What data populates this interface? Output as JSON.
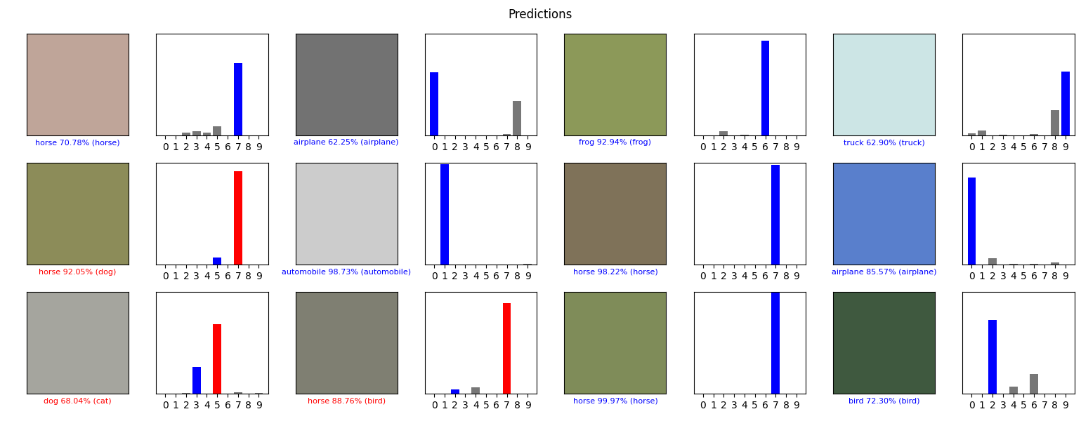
{
  "title": "Predictions",
  "chart_data": [
    {
      "type": "bar",
      "annotation": "horse 70.78% (horse)",
      "categories": [
        "0",
        "1",
        "2",
        "3",
        "4",
        "5",
        "6",
        "7",
        "8",
        "9"
      ],
      "values": [
        0,
        0,
        0.03,
        0.04,
        0.03,
        0.09,
        0,
        0.7078,
        0,
        0
      ],
      "colors": [
        "#777777",
        "#777777",
        "#777777",
        "#777777",
        "#777777",
        "#777777",
        "#777777",
        "blue",
        "#777777",
        "#777777"
      ],
      "ylim": [
        0,
        1
      ],
      "tick_labels": "x"
    },
    {
      "type": "bar",
      "annotation": "airplane 62.25% (airplane)",
      "categories": [
        "0",
        "1",
        "2",
        "3",
        "4",
        "5",
        "6",
        "7",
        "8",
        "9"
      ],
      "values": [
        0.6225,
        0,
        0,
        0,
        0,
        0,
        0,
        0.01,
        0.34,
        0
      ],
      "colors": [
        "blue",
        "#777777",
        "#777777",
        "#777777",
        "#777777",
        "#777777",
        "#777777",
        "#777777",
        "#777777",
        "#777777"
      ],
      "ylim": [
        0,
        1
      ],
      "tick_labels": "x"
    },
    {
      "type": "bar",
      "annotation": "frog 92.94% (frog)",
      "categories": [
        "0",
        "1",
        "2",
        "3",
        "4",
        "5",
        "6",
        "7",
        "8",
        "9"
      ],
      "values": [
        0,
        0,
        0.04,
        0,
        0.005,
        0,
        0.9294,
        0,
        0,
        0
      ],
      "colors": [
        "#777777",
        "#777777",
        "#777777",
        "#777777",
        "#777777",
        "#777777",
        "blue",
        "#777777",
        "#777777",
        "#777777"
      ],
      "ylim": [
        0,
        1
      ],
      "tick_labels": "x"
    },
    {
      "type": "bar",
      "annotation": "truck 62.90% (truck)",
      "categories": [
        "0",
        "1",
        "2",
        "3",
        "4",
        "5",
        "6",
        "7",
        "8",
        "9"
      ],
      "values": [
        0.02,
        0.05,
        0,
        0.005,
        0,
        0,
        0.01,
        0,
        0.25,
        0.629
      ],
      "colors": [
        "#777777",
        "#777777",
        "#777777",
        "#777777",
        "#777777",
        "#777777",
        "#777777",
        "#777777",
        "#777777",
        "blue"
      ],
      "ylim": [
        0,
        1
      ],
      "tick_labels": "x"
    },
    {
      "type": "bar",
      "annotation": "horse 92.05% (dog)",
      "categories": [
        "0",
        "1",
        "2",
        "3",
        "4",
        "5",
        "6",
        "7",
        "8",
        "9"
      ],
      "values": [
        0,
        0,
        0,
        0,
        0,
        0.07,
        0,
        0.9205,
        0,
        0
      ],
      "colors": [
        "#777777",
        "#777777",
        "#777777",
        "#777777",
        "#777777",
        "blue",
        "#777777",
        "red",
        "#777777",
        "#777777"
      ],
      "ylim": [
        0,
        1
      ],
      "tick_labels": "x"
    },
    {
      "type": "bar",
      "annotation": "automobile 98.73% (automobile)",
      "categories": [
        "0",
        "1",
        "2",
        "3",
        "4",
        "5",
        "6",
        "7",
        "8",
        "9"
      ],
      "values": [
        0,
        0.9873,
        0,
        0,
        0,
        0,
        0,
        0,
        0,
        0.01
      ],
      "colors": [
        "#777777",
        "blue",
        "#777777",
        "#777777",
        "#777777",
        "#777777",
        "#777777",
        "#777777",
        "#777777",
        "#777777"
      ],
      "ylim": [
        0,
        1
      ],
      "tick_labels": "x"
    },
    {
      "type": "bar",
      "annotation": "horse 98.22% (horse)",
      "categories": [
        "0",
        "1",
        "2",
        "3",
        "4",
        "5",
        "6",
        "7",
        "8",
        "9"
      ],
      "values": [
        0,
        0,
        0.003,
        0,
        0.003,
        0,
        0,
        0.9822,
        0,
        0
      ],
      "colors": [
        "#777777",
        "#777777",
        "#777777",
        "#777777",
        "#777777",
        "#777777",
        "#777777",
        "blue",
        "#777777",
        "#777777"
      ],
      "ylim": [
        0,
        1
      ],
      "tick_labels": "x"
    },
    {
      "type": "bar",
      "annotation": "airplane 85.57% (airplane)",
      "categories": [
        "0",
        "1",
        "2",
        "3",
        "4",
        "5",
        "6",
        "7",
        "8",
        "9"
      ],
      "values": [
        0.8557,
        0,
        0.06,
        0,
        0.005,
        0,
        0.01,
        0,
        0.02,
        0
      ],
      "colors": [
        "blue",
        "#777777",
        "#777777",
        "#777777",
        "#777777",
        "#777777",
        "#777777",
        "#777777",
        "#777777",
        "#777777"
      ],
      "ylim": [
        0,
        1
      ],
      "tick_labels": "x"
    },
    {
      "type": "bar",
      "annotation": "dog 68.04% (cat)",
      "categories": [
        "0",
        "1",
        "2",
        "3",
        "4",
        "5",
        "6",
        "7",
        "8",
        "9"
      ],
      "values": [
        0,
        0,
        0.01,
        0.26,
        0,
        0.6804,
        0,
        0.015,
        0,
        0.005
      ],
      "colors": [
        "#777777",
        "#777777",
        "#777777",
        "blue",
        "#777777",
        "red",
        "#777777",
        "#777777",
        "#777777",
        "#777777"
      ],
      "ylim": [
        0,
        1
      ],
      "tick_labels": "x"
    },
    {
      "type": "bar",
      "annotation": "horse 88.76% (bird)",
      "categories": [
        "0",
        "1",
        "2",
        "3",
        "4",
        "5",
        "6",
        "7",
        "8",
        "9"
      ],
      "values": [
        0,
        0,
        0.04,
        0,
        0.06,
        0,
        0,
        0.8876,
        0,
        0
      ],
      "colors": [
        "#777777",
        "#777777",
        "blue",
        "#777777",
        "#777777",
        "#777777",
        "#777777",
        "red",
        "#777777",
        "#777777"
      ],
      "ylim": [
        0,
        1
      ],
      "tick_labels": "x"
    },
    {
      "type": "bar",
      "annotation": "horse 99.97% (horse)",
      "categories": [
        "0",
        "1",
        "2",
        "3",
        "4",
        "5",
        "6",
        "7",
        "8",
        "9"
      ],
      "values": [
        0,
        0,
        0,
        0,
        0,
        0,
        0,
        0.9997,
        0,
        0
      ],
      "colors": [
        "#777777",
        "#777777",
        "#777777",
        "#777777",
        "#777777",
        "#777777",
        "#777777",
        "blue",
        "#777777",
        "#777777"
      ],
      "ylim": [
        0,
        1
      ],
      "tick_labels": "x"
    },
    {
      "type": "bar",
      "annotation": "bird 72.30% (bird)",
      "categories": [
        "0",
        "1",
        "2",
        "3",
        "4",
        "5",
        "6",
        "7",
        "8",
        "9"
      ],
      "values": [
        0,
        0,
        0.723,
        0,
        0.07,
        0,
        0.19,
        0,
        0,
        0
      ],
      "colors": [
        "#777777",
        "#777777",
        "blue",
        "#777777",
        "#777777",
        "#777777",
        "#777777",
        "#777777",
        "#777777",
        "#777777"
      ],
      "ylim": [
        0,
        1
      ],
      "tick_labels": "x"
    }
  ]
}
